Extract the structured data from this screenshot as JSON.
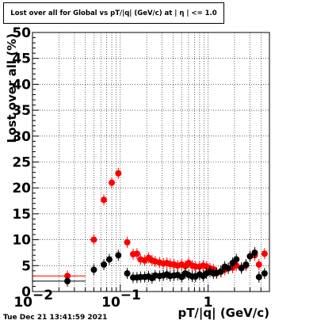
{
  "chart_data": {
    "type": "scatter",
    "title": "Lost over all for Global vs pT/|q| (GeV/c) at | η | <= 1.0",
    "xlabel": "pT/|q| (GeV/c)",
    "ylabel": "Lost over all (%)",
    "xscale": "log",
    "xlim": [
      0.01,
      5.0
    ],
    "ylim": [
      0,
      50
    ],
    "grid": true,
    "y_ticks": [
      "0",
      "5",
      "10",
      "15",
      "20",
      "25",
      "30",
      "35",
      "40",
      "45",
      "50"
    ],
    "x_ticks": [
      "10",
      "1"
    ],
    "x_tick_exps": [
      "−2",
      "−1",
      ""
    ],
    "series": [
      {
        "color": "#ff0000",
        "points": [
          {
            "x": 0.025,
            "y": 3.0,
            "xlo": 0.01,
            "xhi": 0.04
          },
          {
            "x": 0.05,
            "y": 10.0,
            "xlo": 0.045,
            "xhi": 0.055
          },
          {
            "x": 0.065,
            "y": 17.7
          },
          {
            "x": 0.08,
            "y": 21.0
          },
          {
            "x": 0.095,
            "y": 22.8,
            "xlo": 0.088,
            "xhi": 0.103
          },
          {
            "x": 0.12,
            "y": 9.5
          },
          {
            "x": 0.14,
            "y": 7.2
          },
          {
            "x": 0.155,
            "y": 7.3
          },
          {
            "x": 0.17,
            "y": 6.2
          },
          {
            "x": 0.19,
            "y": 6.0
          },
          {
            "x": 0.21,
            "y": 6.5
          },
          {
            "x": 0.23,
            "y": 6.0
          },
          {
            "x": 0.25,
            "y": 5.8
          },
          {
            "x": 0.28,
            "y": 5.6
          },
          {
            "x": 0.31,
            "y": 5.4
          },
          {
            "x": 0.34,
            "y": 5.5
          },
          {
            "x": 0.37,
            "y": 5.3
          },
          {
            "x": 0.41,
            "y": 5.2
          },
          {
            "x": 0.45,
            "y": 5.0
          },
          {
            "x": 0.5,
            "y": 5.2
          },
          {
            "x": 0.55,
            "y": 4.9
          },
          {
            "x": 0.6,
            "y": 5.5
          },
          {
            "x": 0.66,
            "y": 5.0
          },
          {
            "x": 0.72,
            "y": 4.8
          },
          {
            "x": 0.8,
            "y": 4.8
          },
          {
            "x": 0.88,
            "y": 5.0
          },
          {
            "x": 0.96,
            "y": 4.8
          },
          {
            "x": 1.05,
            "y": 4.5
          },
          {
            "x": 1.15,
            "y": 4.3
          },
          {
            "x": 1.25,
            "y": 3.5
          },
          {
            "x": 1.4,
            "y": 3.8
          },
          {
            "x": 1.55,
            "y": 4.2
          },
          {
            "x": 1.7,
            "y": 4.5
          },
          {
            "x": 1.9,
            "y": 4.6
          },
          {
            "x": 2.1,
            "y": 5.0
          },
          {
            "x": 2.4,
            "y": 4.6
          },
          {
            "x": 2.7,
            "y": 5.0
          },
          {
            "x": 3.0,
            "y": 6.8
          },
          {
            "x": 3.4,
            "y": 7.0
          },
          {
            "x": 3.8,
            "y": 5.2
          },
          {
            "x": 4.4,
            "y": 7.3
          }
        ]
      },
      {
        "color": "#000000",
        "points": [
          {
            "x": 0.025,
            "y": 2.0,
            "xlo": 0.01,
            "xhi": 0.04
          },
          {
            "x": 0.05,
            "y": 4.2
          },
          {
            "x": 0.065,
            "y": 5.2
          },
          {
            "x": 0.075,
            "y": 6.2
          },
          {
            "x": 0.095,
            "y": 7.0
          },
          {
            "x": 0.12,
            "y": 3.5
          },
          {
            "x": 0.14,
            "y": 2.7
          },
          {
            "x": 0.155,
            "y": 2.7
          },
          {
            "x": 0.17,
            "y": 2.8
          },
          {
            "x": 0.19,
            "y": 2.8
          },
          {
            "x": 0.21,
            "y": 2.9
          },
          {
            "x": 0.23,
            "y": 2.6
          },
          {
            "x": 0.25,
            "y": 3.1
          },
          {
            "x": 0.28,
            "y": 3.0
          },
          {
            "x": 0.31,
            "y": 3.1
          },
          {
            "x": 0.34,
            "y": 3.3
          },
          {
            "x": 0.37,
            "y": 3.0
          },
          {
            "x": 0.41,
            "y": 3.1
          },
          {
            "x": 0.45,
            "y": 3.2
          },
          {
            "x": 0.5,
            "y": 2.8
          },
          {
            "x": 0.55,
            "y": 3.5
          },
          {
            "x": 0.6,
            "y": 3.2
          },
          {
            "x": 0.66,
            "y": 2.9
          },
          {
            "x": 0.72,
            "y": 2.9
          },
          {
            "x": 0.8,
            "y": 3.3
          },
          {
            "x": 0.88,
            "y": 3.0
          },
          {
            "x": 0.96,
            "y": 3.5
          },
          {
            "x": 1.05,
            "y": 3.8
          },
          {
            "x": 1.15,
            "y": 3.5
          },
          {
            "x": 1.25,
            "y": 3.6
          },
          {
            "x": 1.4,
            "y": 3.9
          },
          {
            "x": 1.55,
            "y": 4.8
          },
          {
            "x": 1.7,
            "y": 4.5
          },
          {
            "x": 1.9,
            "y": 5.5
          },
          {
            "x": 2.1,
            "y": 6.2
          },
          {
            "x": 2.4,
            "y": 4.5
          },
          {
            "x": 2.7,
            "y": 5.2
          },
          {
            "x": 3.0,
            "y": 6.8
          },
          {
            "x": 3.4,
            "y": 7.5
          },
          {
            "x": 3.8,
            "y": 2.8
          },
          {
            "x": 4.4,
            "y": 3.5
          }
        ]
      }
    ]
  },
  "footer": {
    "timestamp": "Tue Dec 21 13:41:59 2021"
  }
}
